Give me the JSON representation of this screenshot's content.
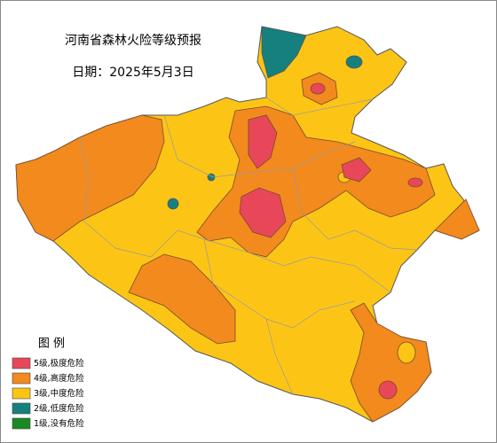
{
  "header": {
    "title": "河南省森林火险等级预报",
    "date": "日期：2025年5月3日"
  },
  "legend": {
    "title": "图 例",
    "items": [
      {
        "label": "5级,极度危险",
        "color": "#e8475a"
      },
      {
        "label": "4级,高度危险",
        "color": "#f28a1e"
      },
      {
        "label": "3级,中度危险",
        "color": "#fcc516"
      },
      {
        "label": "2级,低度危险",
        "color": "#16807e"
      },
      {
        "label": "1级,没有危险",
        "color": "#198a22"
      }
    ]
  }
}
